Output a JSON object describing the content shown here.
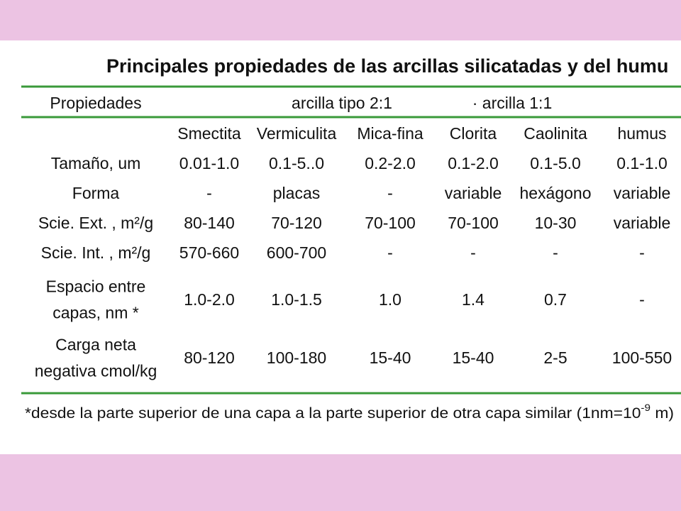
{
  "title": "Principales propiedades de las arcillas silicatadas y del humu",
  "header": {
    "property": "Propiedades",
    "group_2_1": "arcilla tipo 2:1",
    "group_1_1": "· arcilla 1:1"
  },
  "table": {
    "columns": [
      "Smectita",
      "Vermiculita",
      "Mica-fina",
      "Clorita",
      "Caolinita",
      "humus"
    ],
    "rows": [
      {
        "label": [
          "Tamaño, um"
        ],
        "cells": [
          "0.01-1.0",
          "0.1-5..0",
          "0.2-2.0",
          "0.1-2.0",
          "0.1-5.0",
          "0.1-1.0"
        ]
      },
      {
        "label": [
          "Forma"
        ],
        "cells": [
          "-",
          "placas",
          "-",
          "variable",
          "hexágono",
          "variable"
        ]
      },
      {
        "label": [
          "Scie. Ext. , m²/g"
        ],
        "cells": [
          "80-140",
          "70-120",
          "70-100",
          "70-100",
          "10-30",
          "variable"
        ]
      },
      {
        "label": [
          "Scie. Int. , m²/g"
        ],
        "cells": [
          "570-660",
          "600-700",
          "-",
          "-",
          "-",
          "-"
        ]
      },
      {
        "label": [
          "Espacio entre",
          "capas, nm *"
        ],
        "cells": [
          "1.0-2.0",
          "1.0-1.5",
          "1.0",
          "1.4",
          "0.7",
          "-"
        ]
      },
      {
        "label": [
          "Carga neta",
          "negativa cmol/kg"
        ],
        "cells": [
          "80-120",
          "100-180",
          "15-40",
          "15-40",
          "2-5",
          "100-550"
        ]
      }
    ]
  },
  "footnote": {
    "text": "*desde la parte superior de una capa a la parte superior de otra capa similar (1nm=10",
    "exponent": "-9",
    "tail": " m)"
  }
}
